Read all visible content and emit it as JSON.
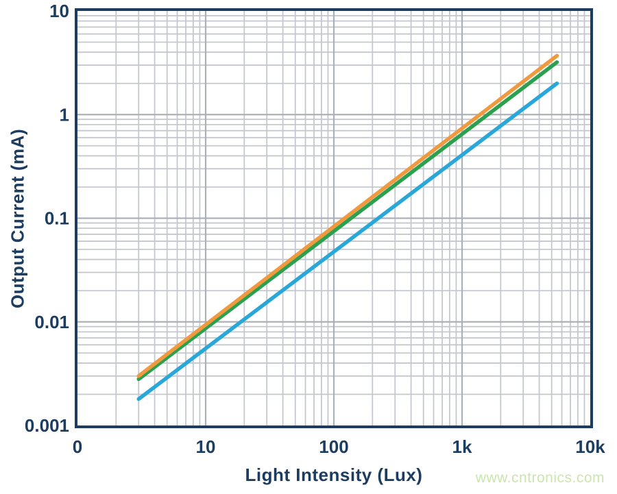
{
  "watermark": {
    "text": "www.cntronics.com",
    "color": "#cbe5ad"
  },
  "colors": {
    "axis_frame": "#1c3d60",
    "tick_label": "#1c3d60",
    "grid_major": "#acb1b8",
    "grid_minor": "#c4c8ce",
    "background": "#ffffff"
  },
  "chart_data": {
    "type": "line",
    "title": "",
    "xlabel": "Light Intensity (Lux)",
    "ylabel": "Output Current (mA)",
    "x_scale": "log",
    "y_scale": "log",
    "xlim": [
      1,
      10000
    ],
    "ylim": [
      0.001,
      10
    ],
    "grid": "log major + minor gridlines on both axes",
    "legend": "none",
    "x_ticks": [
      {
        "value": 1,
        "label": "0"
      },
      {
        "value": 10,
        "label": "10"
      },
      {
        "value": 100,
        "label": "100"
      },
      {
        "value": 1000,
        "label": "1k"
      },
      {
        "value": 10000,
        "label": "10k"
      }
    ],
    "y_ticks": [
      {
        "value": 10,
        "label": "10"
      },
      {
        "value": 1,
        "label": "1"
      },
      {
        "value": 0.1,
        "label": "0.1"
      },
      {
        "value": 0.01,
        "label": "0.01"
      },
      {
        "value": 0.001,
        "label": "0.001"
      }
    ],
    "series": [
      {
        "name": "blue",
        "color": "#29a7d8",
        "points": [
          [
            3,
            0.0018
          ],
          [
            5500,
            2.0
          ]
        ]
      },
      {
        "name": "green",
        "color": "#2ba150",
        "points": [
          [
            3,
            0.0028
          ],
          [
            5500,
            3.2
          ]
        ]
      },
      {
        "name": "orange",
        "color": "#f0993e",
        "points": [
          [
            3,
            0.003
          ],
          [
            5500,
            3.7
          ]
        ]
      }
    ]
  }
}
